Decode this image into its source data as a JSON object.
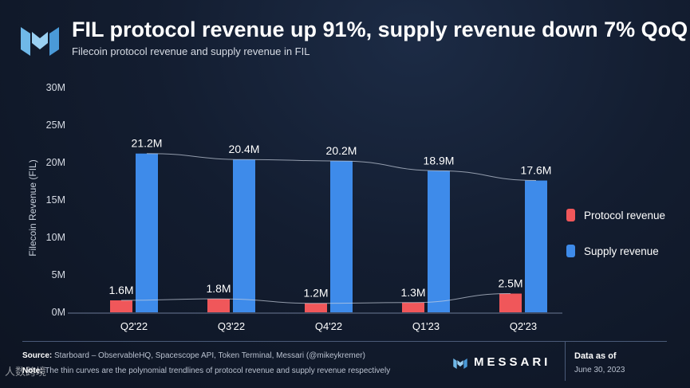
{
  "header": {
    "title": "FIL protocol revenue up 91%, supply revenue down 7% QoQ",
    "subtitle": "Filecoin protocol revenue and supply revenue in FIL"
  },
  "colors": {
    "protocol": "#f0575a",
    "supply": "#3e8bea"
  },
  "chart_data": {
    "type": "bar",
    "title": "FIL protocol revenue up 91%, supply revenue down 7% QoQ",
    "subtitle": "Filecoin protocol revenue and supply revenue in FIL",
    "xlabel": "",
    "ylabel": "Filecoin Revenue (FIL)",
    "ylim": [
      0,
      30
    ],
    "yticks": [
      0,
      5,
      10,
      15,
      20,
      25,
      30
    ],
    "ytick_labels": [
      "0M",
      "5M",
      "10M",
      "15M",
      "20M",
      "25M",
      "30M"
    ],
    "grid": false,
    "legend_position": "right",
    "categories": [
      "Q2'22",
      "Q3'22",
      "Q4'22",
      "Q1'23",
      "Q2'23"
    ],
    "series": [
      {
        "name": "Protocol revenue",
        "values": [
          1.6,
          1.8,
          1.2,
          1.3,
          2.5
        ],
        "labels": [
          "1.6M",
          "1.8M",
          "1.2M",
          "1.3M",
          "2.5M"
        ]
      },
      {
        "name": "Supply revenue",
        "values": [
          21.2,
          20.4,
          20.2,
          18.9,
          17.6
        ],
        "labels": [
          "21.2M",
          "20.4M",
          "20.2M",
          "18.9M",
          "17.6M"
        ]
      }
    ],
    "trendlines": "polynomial"
  },
  "legend": {
    "protocol_label": "Protocol revenue",
    "supply_label": "Supply revenue"
  },
  "footer": {
    "source_label": "Source:",
    "source_text": "Starboard – ObservableHQ, Spacescope API, Token Terminal, Messari (@mikeykremer)",
    "note_label": "Note:",
    "note_text": "The thin curves are the polynomial trendlines of protocol revenue and supply revenue respectively",
    "brand": "MESSARI",
    "asof_label": "Data as of",
    "asof_date": "June 30, 2023",
    "watermark": "人数跨境"
  }
}
